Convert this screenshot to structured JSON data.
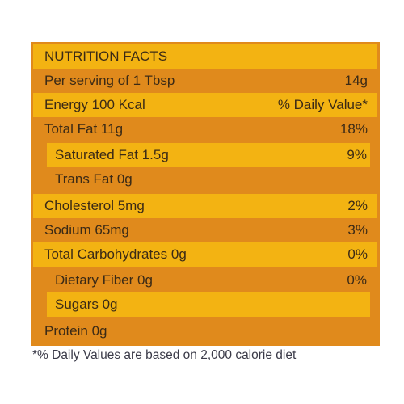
{
  "title": "NUTRITION FACTS",
  "rows": [
    {
      "label": "Per serving of 1 Tbsp",
      "value": "14g"
    },
    {
      "label": "Energy 100 Kcal",
      "value": "% Daily Value*"
    },
    {
      "label": "Total Fat 11g",
      "value": "18%"
    },
    {
      "label": "Saturated Fat 1.5g",
      "value": "9%"
    },
    {
      "label": "Trans Fat 0g"
    },
    {
      "label": "Cholesterol 5mg",
      "value": "2%"
    },
    {
      "label": "Sodium 65mg",
      "value": "3%"
    },
    {
      "label": "Total Carbohydrates 0g",
      "value": "0%"
    },
    {
      "label": "Dietary Fiber 0g",
      "value": "0%"
    },
    {
      "label": "Sugars 0g"
    },
    {
      "label": "Protein 0g"
    }
  ],
  "footnote": "*% Daily Values are based on 2,000 calorie diet"
}
